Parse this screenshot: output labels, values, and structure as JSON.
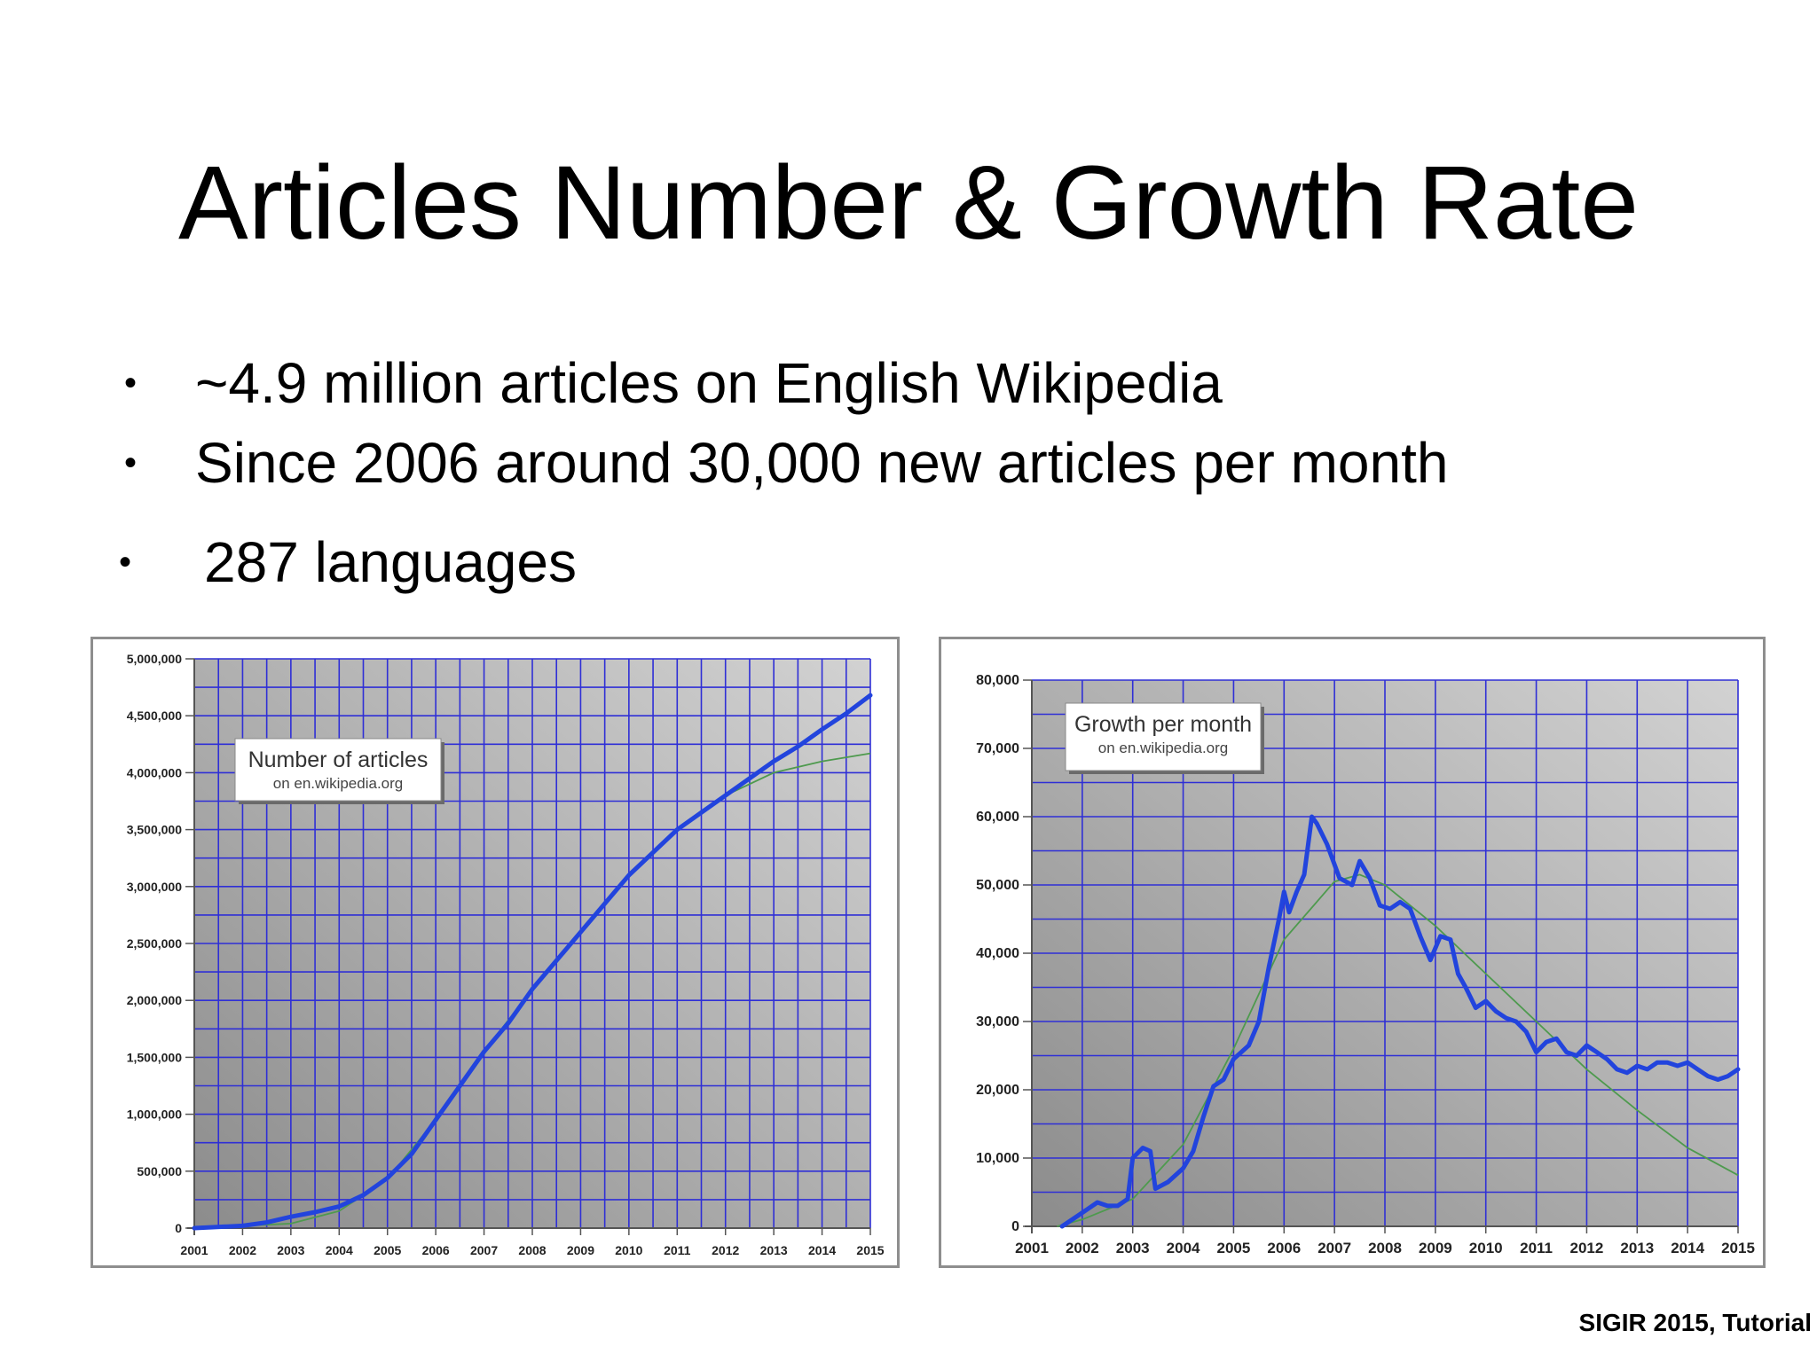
{
  "slide": {
    "title": "Articles Number & Growth Rate",
    "bullets": [
      "~4.9 million articles on English Wikipedia",
      "Since 2006 around 30,000 new articles per month",
      "287 languages"
    ],
    "footer": "SIGIR 2015, Tutorial"
  },
  "colors": {
    "grid": "#2f2fd6",
    "series": "#2244dd",
    "trend": "#4e9a4e",
    "plot_dark": "#8c8c8c",
    "plot_light": "#d2d2d2"
  },
  "chart_data": [
    {
      "type": "line",
      "title": "Number of articles",
      "subtitle": "on en.wikipedia.org",
      "xlabel": "",
      "ylabel": "",
      "xlim": [
        2001,
        2015
      ],
      "ylim": [
        0,
        5000000
      ],
      "grid": true,
      "x_ticks": [
        "2001",
        "2002",
        "2003",
        "2004",
        "2005",
        "2006",
        "2007",
        "2008",
        "2009",
        "2010",
        "2011",
        "2012",
        "2013",
        "2014",
        "2015"
      ],
      "y_ticks": [
        "0",
        "500,000",
        "1,000,000",
        "1,500,000",
        "2,000,000",
        "2,500,000",
        "3,000,000",
        "3,500,000",
        "4,000,000",
        "4,500,000",
        "5,000,000"
      ],
      "series": [
        {
          "x": [
            2001,
            2002,
            2002.5,
            2003,
            2003.5,
            2004,
            2004.5,
            2005,
            2005.5,
            2006,
            2006.5,
            2007,
            2007.5,
            2008,
            2008.5,
            2009,
            2009.5,
            2010,
            2010.5,
            2011,
            2011.5,
            2012,
            2012.5,
            2013,
            2013.5,
            2014,
            2014.5,
            2015
          ],
          "y": [
            0,
            20000,
            50000,
            100000,
            140000,
            190000,
            290000,
            440000,
            650000,
            950000,
            1250000,
            1550000,
            1800000,
            2100000,
            2350000,
            2600000,
            2850000,
            3100000,
            3300000,
            3500000,
            3650000,
            3800000,
            3950000,
            4100000,
            4230000,
            4380000,
            4520000,
            4680000
          ]
        }
      ],
      "trend": {
        "x": [
          2001,
          2003,
          2004,
          2005,
          2006,
          2007,
          2008,
          2009,
          2010,
          2011,
          2012,
          2013,
          2014,
          2015
        ],
        "y": [
          0,
          40000,
          150000,
          430000,
          950000,
          1550000,
          2100000,
          2600000,
          3100000,
          3500000,
          3800000,
          4000000,
          4100000,
          4170000
        ]
      }
    },
    {
      "type": "line",
      "title": "Growth per month",
      "subtitle": "on en.wikipedia.org",
      "xlabel": "",
      "ylabel": "",
      "xlim": [
        2001,
        2015
      ],
      "ylim": [
        0,
        80000
      ],
      "grid": true,
      "x_ticks": [
        "2001",
        "2002",
        "2003",
        "2004",
        "2005",
        "2006",
        "2007",
        "2008",
        "2009",
        "2010",
        "2011",
        "2012",
        "2013",
        "2014",
        "2015"
      ],
      "y_ticks": [
        "0",
        "10,000",
        "20,000",
        "30,000",
        "40,000",
        "50,000",
        "60,000",
        "70,000",
        "80,000"
      ],
      "series": [
        {
          "x": [
            2001.6,
            2001.9,
            2002.1,
            2002.3,
            2002.5,
            2002.7,
            2002.9,
            2003.0,
            2003.2,
            2003.35,
            2003.45,
            2003.7,
            2004.0,
            2004.2,
            2004.4,
            2004.6,
            2004.8,
            2005.0,
            2005.3,
            2005.5,
            2005.7,
            2005.9,
            2006.0,
            2006.1,
            2006.25,
            2006.4,
            2006.55,
            2006.65,
            2006.85,
            2007.1,
            2007.35,
            2007.5,
            2007.7,
            2007.9,
            2008.1,
            2008.3,
            2008.5,
            2008.7,
            2008.9,
            2009.1,
            2009.3,
            2009.45,
            2009.6,
            2009.8,
            2010.0,
            2010.2,
            2010.4,
            2010.6,
            2010.8,
            2011.0,
            2011.2,
            2011.4,
            2011.6,
            2011.8,
            2012.0,
            2012.2,
            2012.4,
            2012.6,
            2012.8,
            2013.0,
            2013.2,
            2013.4,
            2013.6,
            2013.8,
            2014.0,
            2014.2,
            2014.4,
            2014.6,
            2014.8,
            2015.0
          ],
          "y": [
            0,
            1500,
            2500,
            3500,
            3000,
            3000,
            4000,
            10000,
            11500,
            11000,
            5500,
            6500,
            8500,
            11000,
            16000,
            20500,
            21500,
            24500,
            26500,
            30000,
            38000,
            45000,
            49000,
            46000,
            49000,
            51500,
            60000,
            59000,
            56000,
            51000,
            50000,
            53500,
            51000,
            47000,
            46500,
            47500,
            46500,
            42500,
            39000,
            42500,
            42000,
            37000,
            35000,
            32000,
            33000,
            31500,
            30500,
            30000,
            28500,
            25500,
            27000,
            27500,
            25500,
            25000,
            26500,
            25500,
            24500,
            23000,
            22500,
            23500,
            23000,
            24000,
            24000,
            23500,
            24000,
            23000,
            22000,
            21500,
            22000,
            23000
          ]
        }
      ],
      "trend": {
        "x": [
          2001.5,
          2002,
          2003,
          2004,
          2005,
          2006,
          2007,
          2007.5,
          2008,
          2009,
          2010,
          2011,
          2012,
          2013,
          2014,
          2015
        ],
        "y": [
          0,
          1000,
          4000,
          12000,
          26000,
          42000,
          50500,
          51500,
          50000,
          44000,
          37000,
          30000,
          23000,
          17000,
          11500,
          7500
        ]
      }
    }
  ]
}
